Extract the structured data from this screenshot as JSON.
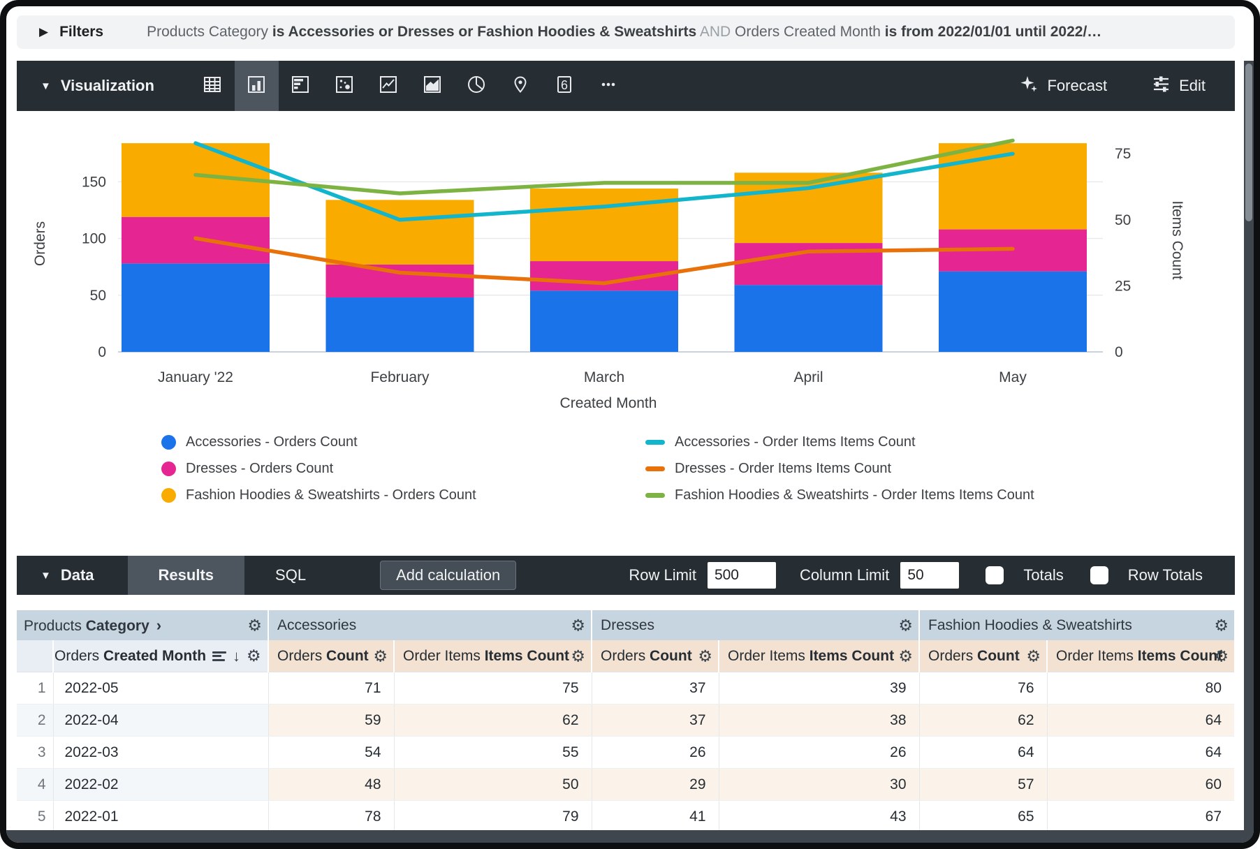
{
  "filters": {
    "title": "Filters",
    "summary": [
      {
        "text": "Products Category ",
        "style": "field"
      },
      {
        "text": "is Accessories or Dresses or Fashion Hoodies & Sweatshirts",
        "style": "value"
      },
      {
        "text": " AND ",
        "style": "conjunction"
      },
      {
        "text": "Orders Created Month ",
        "style": "field"
      },
      {
        "text": "is from 2022/01/01 until 2022/…",
        "style": "value"
      }
    ]
  },
  "viz": {
    "title": "Visualization",
    "tabs": [
      "table",
      "column",
      "bar",
      "scatter",
      "line",
      "area",
      "pie",
      "map",
      "single-value",
      "more"
    ],
    "selected_tab": "column",
    "single_value_glyph": "6",
    "forecast_label": "Forecast",
    "edit_label": "Edit"
  },
  "chart_data": {
    "type": "combo: stacked column + line, dual y-axes",
    "x": [
      "2022-01",
      "2022-02",
      "2022-03",
      "2022-04",
      "2022-05"
    ],
    "x_labels": [
      "January '22",
      "February",
      "March",
      "April",
      "May"
    ],
    "xlabel": "Created Month",
    "grid": true,
    "left_axis": {
      "label": "Orders",
      "ticks": [
        0,
        50,
        100,
        150
      ],
      "max": 205
    },
    "right_axis": {
      "label": "Items Count",
      "ticks": [
        0,
        25,
        50,
        75
      ],
      "max": 88
    },
    "bar_series": [
      {
        "name": "Accessories - Orders Count",
        "color": "#1a73e8",
        "values": [
          78,
          48,
          54,
          59,
          71
        ]
      },
      {
        "name": "Dresses - Orders Count",
        "color": "#e52592",
        "values": [
          41,
          29,
          26,
          37,
          37
        ]
      },
      {
        "name": "Fashion Hoodies & Sweatshirts - Orders Count",
        "color": "#f9ab00",
        "values": [
          65,
          57,
          64,
          62,
          76
        ]
      }
    ],
    "line_series": [
      {
        "name": "Accessories - Order Items Items Count",
        "color": "#12b5cb",
        "values": [
          79,
          50,
          55,
          62,
          75
        ]
      },
      {
        "name": "Dresses - Order Items Items Count",
        "color": "#e8710a",
        "values": [
          43,
          30,
          26,
          38,
          39
        ]
      },
      {
        "name": "Fashion Hoodies & Sweatshirts - Order Items Items Count",
        "color": "#7cb342",
        "values": [
          67,
          60,
          64,
          64,
          80
        ]
      }
    ]
  },
  "data_panel": {
    "title": "Data",
    "tabs": [
      {
        "label": "Results",
        "selected": true
      },
      {
        "label": "SQL",
        "selected": false
      }
    ],
    "add_calculation_label": "Add calculation",
    "row_limit_label": "Row Limit",
    "row_limit_value": "500",
    "column_limit_label": "Column Limit",
    "column_limit_value": "50",
    "totals_label": "Totals",
    "totals_checked": false,
    "row_totals_label": "Row Totals",
    "row_totals_checked": false
  },
  "table": {
    "groups": [
      {
        "plain": "Products ",
        "bold": "Category",
        "chevron": "›"
      },
      {
        "plain": "Accessories",
        "bold": "",
        "chevron": ""
      },
      {
        "plain": "Dresses",
        "bold": "",
        "chevron": ""
      },
      {
        "plain": "Fashion Hoodies & Sweatshirts",
        "bold": "",
        "chevron": ""
      }
    ],
    "dimension_header": {
      "plain": "Orders ",
      "bold": "Created Month"
    },
    "measure_headers": [
      {
        "plain": "Orders ",
        "bold": "Count"
      },
      {
        "plain": "Order Items ",
        "bold": "Items Count"
      }
    ],
    "rows": [
      {
        "n": "1",
        "month": "2022-05",
        "values": [
          71,
          75,
          37,
          39,
          76,
          80
        ]
      },
      {
        "n": "2",
        "month": "2022-04",
        "values": [
          59,
          62,
          37,
          38,
          62,
          64
        ]
      },
      {
        "n": "3",
        "month": "2022-03",
        "values": [
          54,
          55,
          26,
          26,
          64,
          64
        ]
      },
      {
        "n": "4",
        "month": "2022-02",
        "values": [
          48,
          50,
          29,
          30,
          57,
          60
        ]
      },
      {
        "n": "5",
        "month": "2022-01",
        "values": [
          78,
          79,
          41,
          43,
          65,
          67
        ]
      }
    ]
  }
}
